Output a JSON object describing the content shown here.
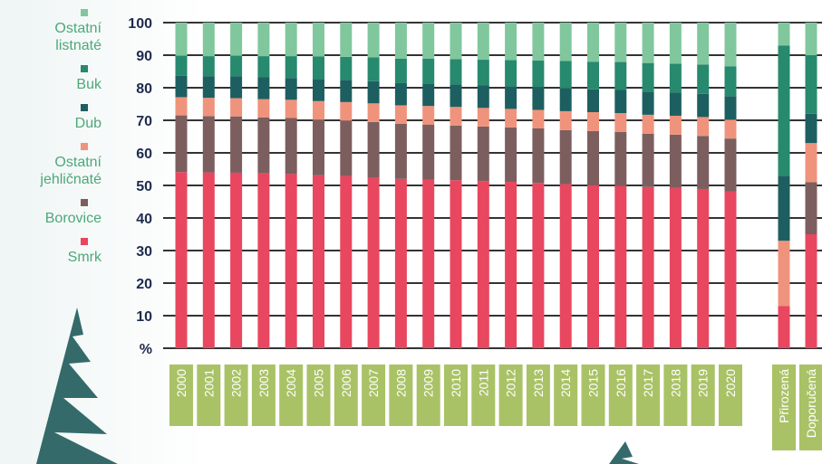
{
  "chart_data": {
    "type": "stacked-bar",
    "categories": [
      "2000",
      "2001",
      "2002",
      "2003",
      "2004",
      "2005",
      "2006",
      "2007",
      "2008",
      "2009",
      "2010",
      "2011",
      "2012",
      "2013",
      "2014",
      "2015",
      "2016",
      "2017",
      "2018",
      "2019",
      "2020",
      "Přirozená",
      "Doporučená"
    ],
    "series": [
      {
        "name": "Smrk",
        "color": "#e8475f",
        "values": [
          54.1,
          54.0,
          53.9,
          53.7,
          53.5,
          53.1,
          52.9,
          52.5,
          52.0,
          51.8,
          51.6,
          51.3,
          51.1,
          50.8,
          50.4,
          50.1,
          49.9,
          49.5,
          49.2,
          48.9,
          48.2,
          13,
          35
        ]
      },
      {
        "name": "Borovice",
        "color": "#7d5e5e",
        "values": [
          17.4,
          17.3,
          17.3,
          17.2,
          17.2,
          17.1,
          17.0,
          17.0,
          16.9,
          16.9,
          16.8,
          16.8,
          16.7,
          16.7,
          16.6,
          16.6,
          16.5,
          16.4,
          16.4,
          16.3,
          16.2,
          0,
          16
        ]
      },
      {
        "name": "Ostatní jehličnaté",
        "color": "#f0937c",
        "values": [
          5.6,
          5.6,
          5.6,
          5.6,
          5.6,
          5.7,
          5.7,
          5.7,
          5.7,
          5.7,
          5.7,
          5.7,
          5.7,
          5.7,
          5.8,
          5.8,
          5.8,
          5.8,
          5.8,
          5.8,
          5.8,
          20,
          12
        ]
      },
      {
        "name": "Dub",
        "color": "#1d5f60",
        "values": [
          6.6,
          6.6,
          6.7,
          6.7,
          6.7,
          6.8,
          6.8,
          6.8,
          6.8,
          6.9,
          6.9,
          6.9,
          6.9,
          7.0,
          7.0,
          7.0,
          7.1,
          7.1,
          7.1,
          7.1,
          7.2,
          20,
          9
        ]
      },
      {
        "name": "Buk",
        "color": "#27896e",
        "values": [
          6.1,
          6.2,
          6.3,
          6.5,
          6.7,
          6.9,
          7.1,
          7.3,
          7.5,
          7.6,
          7.8,
          7.9,
          8.1,
          8.2,
          8.4,
          8.5,
          8.6,
          8.8,
          8.9,
          9.0,
          9.2,
          40,
          18
        ]
      },
      {
        "name": "Ostatní listnaté",
        "color": "#80c79d",
        "values": [
          10.2,
          10.3,
          10.2,
          10.3,
          10.3,
          10.4,
          10.5,
          10.7,
          11.1,
          11.1,
          11.2,
          11.4,
          11.5,
          11.6,
          11.8,
          12.0,
          12.1,
          12.4,
          12.6,
          12.9,
          13.4,
          7,
          10
        ]
      }
    ],
    "ylim": [
      0,
      100
    ],
    "yticks": [
      {
        "value": 0,
        "label": "%"
      },
      10,
      20,
      30,
      40,
      50,
      60,
      70,
      80,
      90,
      100
    ],
    "grid": true
  }
}
